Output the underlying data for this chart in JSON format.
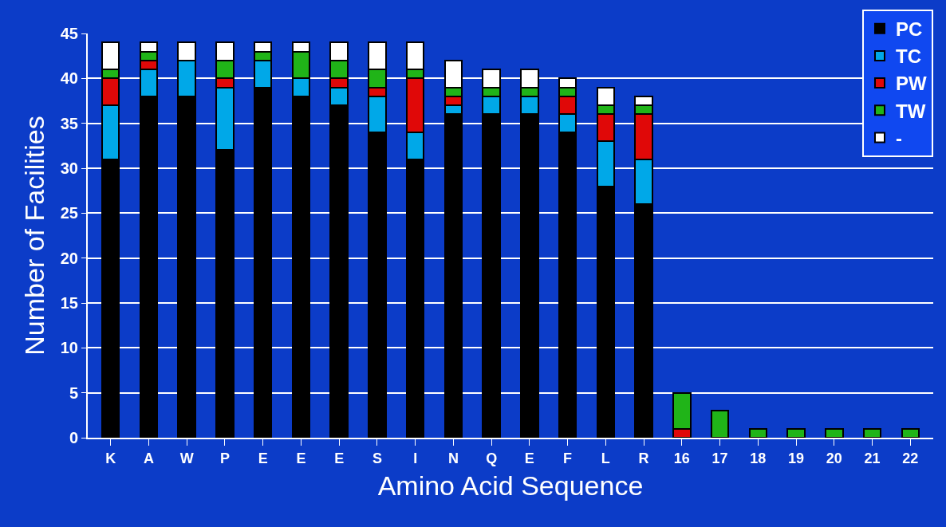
{
  "chart_data": {
    "type": "bar",
    "stacked": true,
    "xlabel": "Amino Acid Sequence",
    "ylabel": "Number of Facilities",
    "categories": [
      "K",
      "A",
      "W",
      "P",
      "E",
      "E",
      "E",
      "S",
      "I",
      "N",
      "Q",
      "E",
      "F",
      "L",
      "R",
      "16",
      "17",
      "18",
      "19",
      "20",
      "21",
      "22"
    ],
    "series": [
      {
        "name": "PC",
        "color": "#000000",
        "values": [
          31,
          38,
          38,
          32,
          39,
          38,
          37,
          34,
          31,
          36,
          36,
          36,
          34,
          28,
          26,
          null,
          null,
          null,
          null,
          null,
          null,
          null
        ]
      },
      {
        "name": "TC",
        "color": "#00a8e8",
        "values": [
          6,
          3,
          4,
          7,
          3,
          2,
          2,
          4,
          3,
          1,
          2,
          2,
          2,
          5,
          5,
          null,
          null,
          null,
          null,
          null,
          null,
          null
        ]
      },
      {
        "name": "PW",
        "color": "#e00808",
        "values": [
          3,
          1,
          null,
          1,
          null,
          null,
          1,
          1,
          6,
          1,
          null,
          null,
          2,
          3,
          5,
          1,
          null,
          null,
          null,
          null,
          null,
          null
        ]
      },
      {
        "name": "TW",
        "color": "#20b418",
        "values": [
          1,
          1,
          null,
          2,
          1,
          3,
          2,
          2,
          1,
          1,
          1,
          1,
          1,
          1,
          1,
          4,
          3,
          1,
          1,
          1,
          1,
          1
        ]
      },
      {
        "name": "-",
        "color": "#ffffff",
        "values": [
          3,
          1,
          2,
          2,
          1,
          1,
          2,
          3,
          3,
          3,
          2,
          2,
          1,
          2,
          1,
          null,
          null,
          null,
          null,
          null,
          null,
          null
        ]
      }
    ],
    "ylim": [
      0,
      45
    ],
    "yticks": [
      0,
      5,
      10,
      15,
      20,
      25,
      30,
      35,
      40,
      45
    ],
    "grid": "y",
    "legend": "top right"
  }
}
